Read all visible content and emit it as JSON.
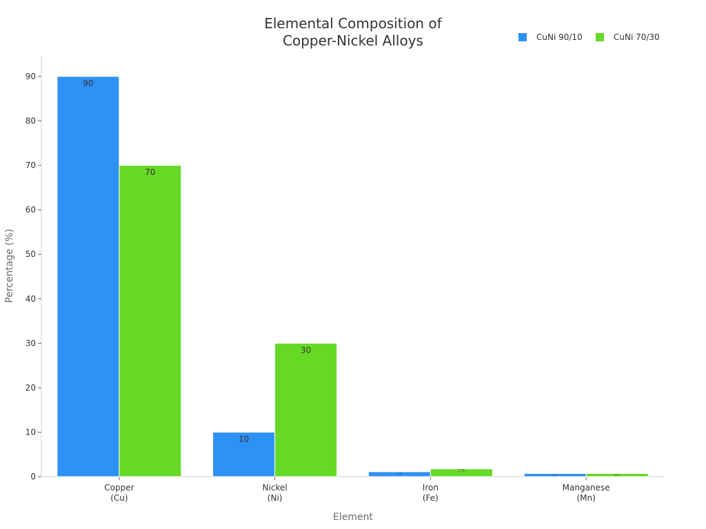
{
  "chart_data": {
    "type": "bar",
    "title_lines": [
      "Elemental Composition of",
      "Copper-Nickel Alloys"
    ],
    "xlabel": "Element",
    "ylabel": "Percentage (%)",
    "categories": [
      {
        "line1": "Copper",
        "line2": "(Cu)"
      },
      {
        "line1": "Nickel",
        "line2": "(Ni)"
      },
      {
        "line1": "Iron",
        "line2": "(Fe)"
      },
      {
        "line1": "Manganese",
        "line2": "(Mn)"
      }
    ],
    "series": [
      {
        "name": "CuNi 90/10",
        "color": "#2e91f4",
        "values": [
          90,
          10,
          1.1,
          0.7
        ],
        "labels": [
          "90",
          "10",
          "1.1",
          "0.7"
        ]
      },
      {
        "name": "CuNi 70/30",
        "color": "#66d926",
        "values": [
          70,
          30,
          1.75,
          0.7
        ],
        "labels": [
          "70",
          "30",
          "1.75",
          "0.7"
        ]
      }
    ],
    "yticks": [
      0,
      10,
      20,
      30,
      40,
      50,
      60,
      70,
      80,
      90
    ],
    "ylim": [
      0,
      95
    ],
    "grid": false,
    "legend_position": "top-right"
  }
}
